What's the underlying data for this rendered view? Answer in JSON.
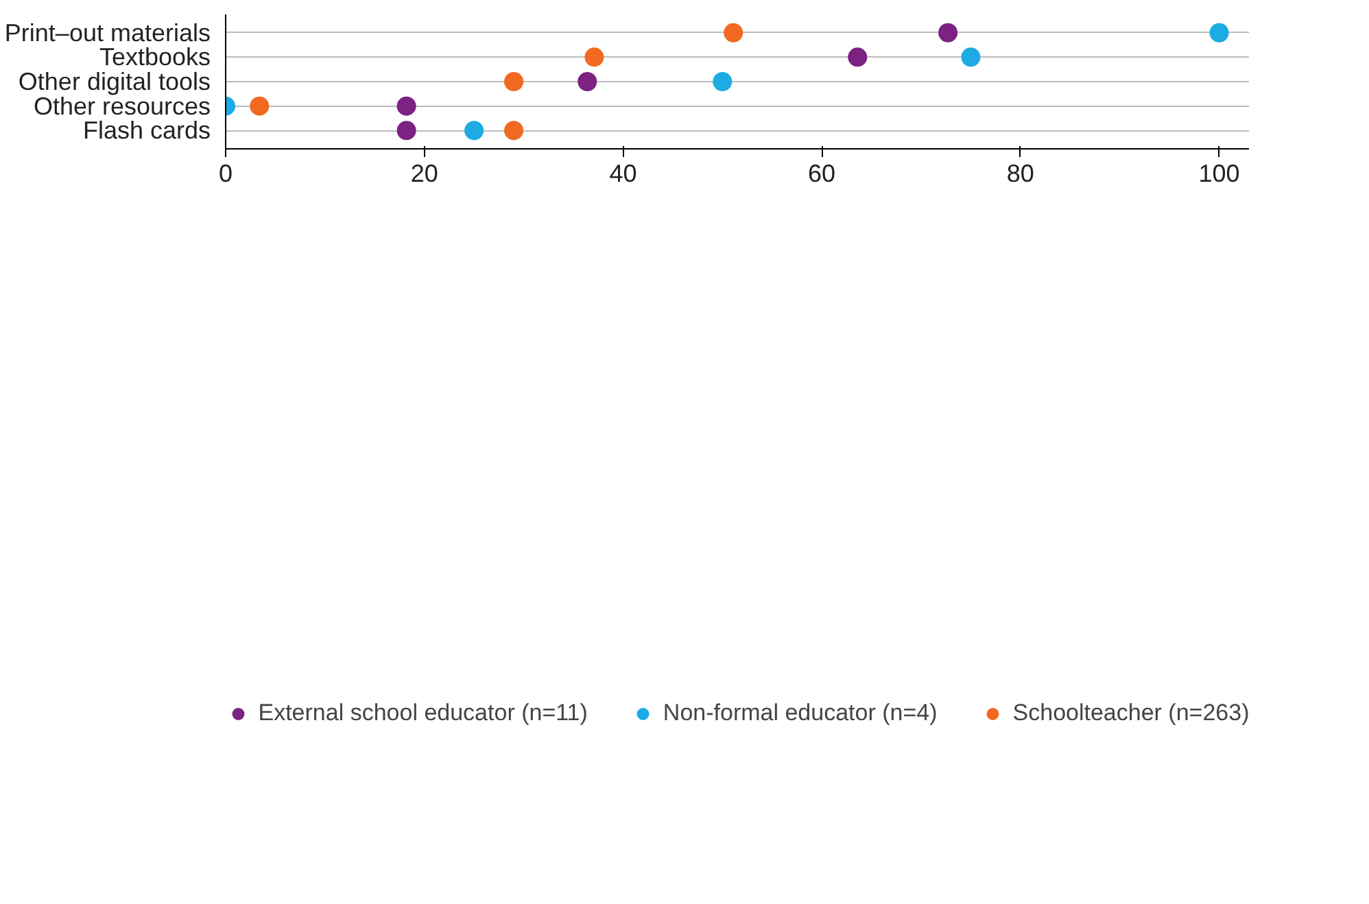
{
  "chart_data": {
    "type": "scatter",
    "orientation": "horizontal",
    "categories": [
      "Print–out materials",
      "Textbooks",
      "Other digital tools",
      "Other resources",
      "Flash cards"
    ],
    "series": [
      {
        "name": "External school educator (n=11)",
        "color": "#7b2282",
        "values": [
          72.7,
          63.6,
          36.4,
          18.2,
          18.2
        ]
      },
      {
        "name": "Non-formal educator (n=4)",
        "color": "#1cabe2",
        "values": [
          100,
          75,
          50,
          0,
          25
        ]
      },
      {
        "name": "Schoolteacher (n=263)",
        "color": "#f26a21",
        "values": [
          51.1,
          37.1,
          29,
          3.4,
          29
        ]
      }
    ],
    "xlim": [
      0,
      103
    ],
    "xticks": [
      0,
      20,
      40,
      60,
      80,
      100
    ],
    "grid": "y",
    "legend": "bottom",
    "marker": "circle"
  }
}
